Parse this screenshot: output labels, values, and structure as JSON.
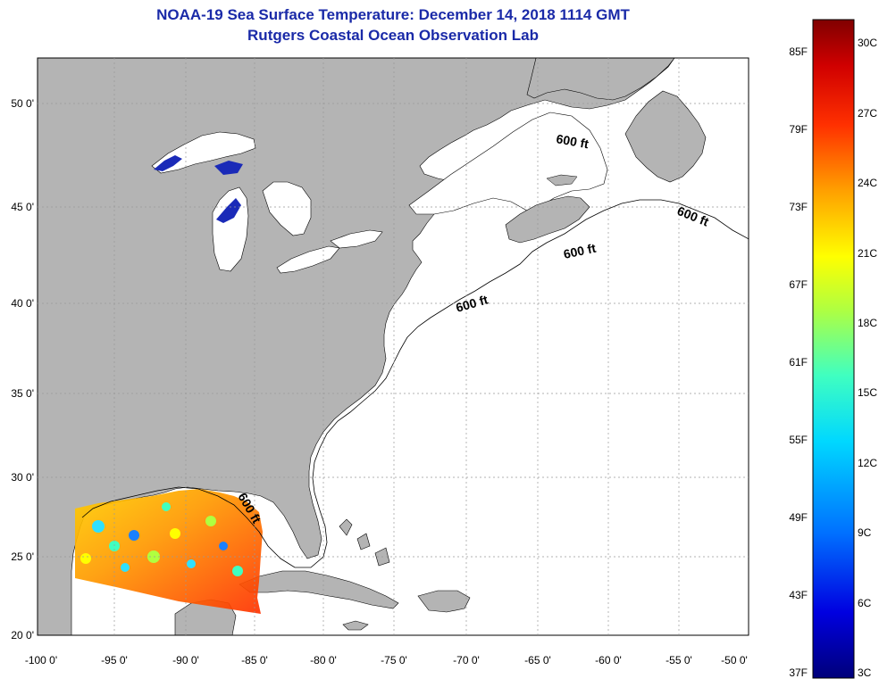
{
  "header": {
    "title": "NOAA-19 Sea Surface Temperature:  December 14, 2018 1114 GMT",
    "subtitle": "Rutgers Coastal Ocean Observation Lab"
  },
  "axes": {
    "lat_labels": [
      "50 0'",
      "45 0'",
      "40 0'",
      "35 0'",
      "30 0'",
      "25 0'",
      "20 0'"
    ],
    "lon_labels": [
      "-100 0'",
      "-95 0'",
      "-90 0'",
      "-85 0'",
      "-80 0'",
      "-75 0'",
      "-70 0'",
      "-65 0'",
      "-60 0'",
      "-55 0'",
      "-50 0'"
    ]
  },
  "depth_contours": {
    "labels": [
      "600 ft",
      "600 ft",
      "600 ft",
      "600 ft",
      "600 ft"
    ]
  },
  "colorbar": {
    "fahrenheit_labels": [
      "85F",
      "79F",
      "73F",
      "67F",
      "61F",
      "55F",
      "49F",
      "43F",
      "37F"
    ],
    "celsius_labels": [
      "30C",
      "27C",
      "24C",
      "21C",
      "18C",
      "15C",
      "12C",
      "9C",
      "6C",
      "3C"
    ],
    "colors": [
      "#00007a",
      "#0000e0",
      "#0070ff",
      "#00d8ff",
      "#40ffc0",
      "#b0ff40",
      "#ffff00",
      "#ffa000",
      "#ff3000",
      "#d00000",
      "#800000"
    ]
  },
  "colors": {
    "land": "#b4b4b4",
    "title": "#1a2aa8"
  }
}
